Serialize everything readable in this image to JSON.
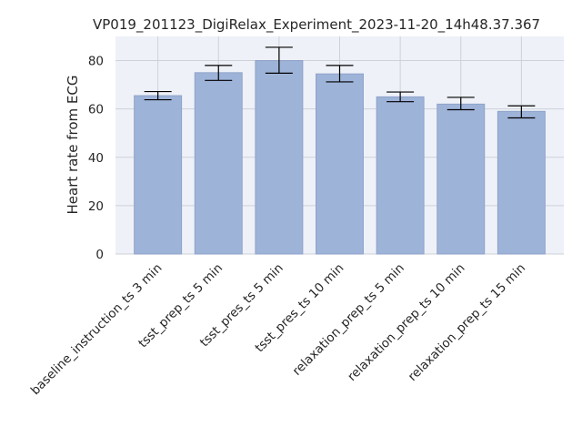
{
  "chart_data": {
    "type": "bar",
    "title": "VP019_201123_DigiRelax_Experiment_2023-11-20_14h48.37.367",
    "xlabel": "",
    "ylabel": "Heart rate from ECG",
    "ylim": [
      0,
      90
    ],
    "yticks": [
      0,
      20,
      40,
      60,
      80
    ],
    "grid": true,
    "categories": [
      "baseline_instruction_ts 3 min",
      "tsst_prep_ts 5 min",
      "tsst_pres_ts 5 min",
      "tsst_pres_ts 10 min",
      "relaxation_prep_ts 5 min",
      "relaxation_prep_ts 10 min",
      "relaxation_prep_ts 15 min"
    ],
    "values": [
      65.5,
      75.0,
      80.0,
      74.5,
      65.0,
      62.0,
      59.0
    ],
    "error_low": [
      63.8,
      71.8,
      74.8,
      71.2,
      63.0,
      59.7,
      56.3
    ],
    "error_high": [
      67.2,
      78.0,
      85.5,
      78.0,
      67.0,
      64.8,
      61.3
    ],
    "colors": {
      "bar": "#9eb3d8",
      "bar_edge": "#8fa3c9",
      "plot_bg": "#eef1f7",
      "grid": "#cdd1da",
      "error": "#000000"
    }
  }
}
